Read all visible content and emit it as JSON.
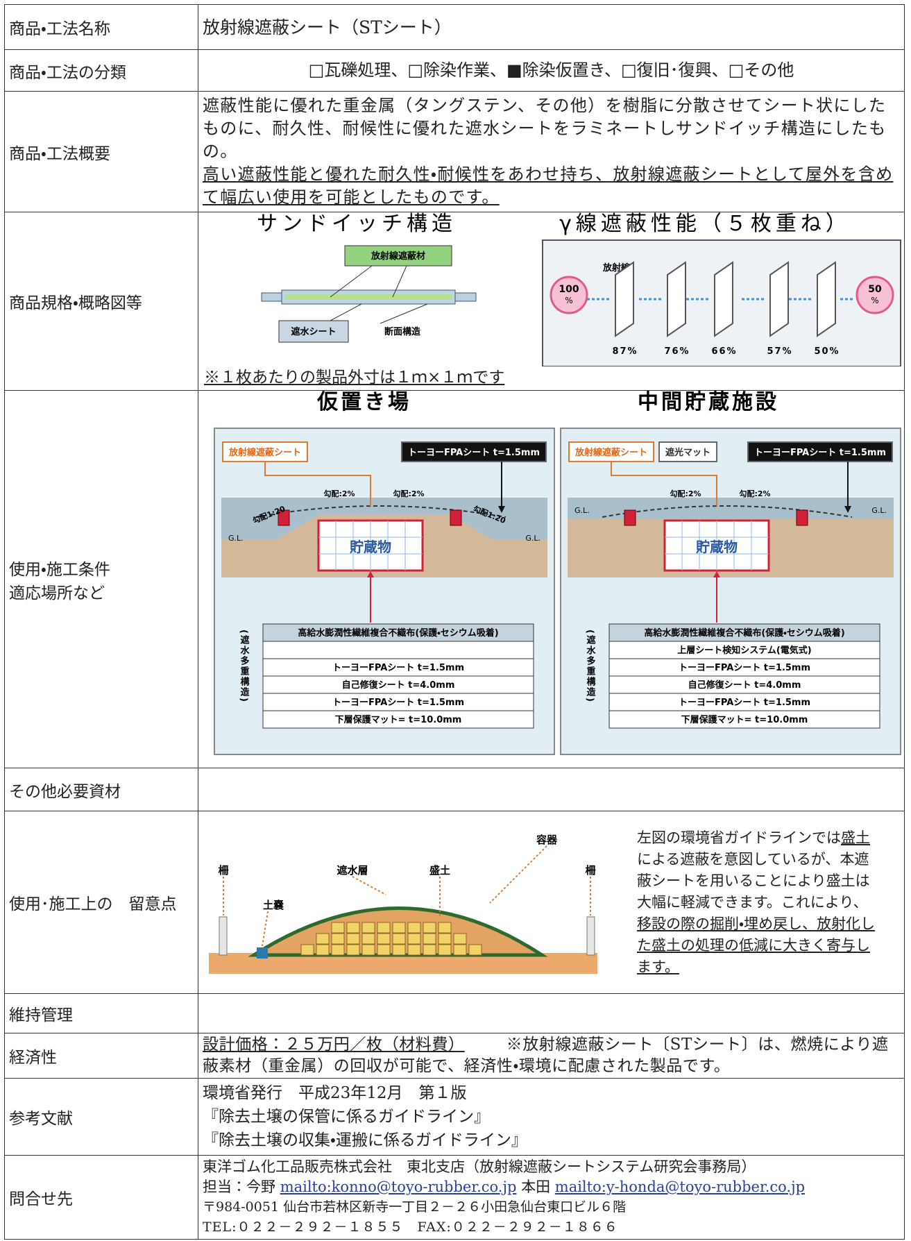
{
  "rows": [
    {
      "label": "商品・工法名称",
      "value": "放射線遮蔽シート（STシート）"
    },
    {
      "label": "商品・工法の分類",
      "value": "□瓦礫処理、□除染作業、■除染仮置き、□復旧･復興、□その他"
    },
    {
      "label": "商品・工法概要",
      "text": "遮蔽性能に優れた重金属（タングステン、その他）を樹脂に分散させてシート状にしたものに、耐久性、耐候性に優れた遮水シートをラミネートしサンドイッチ構造にしたもの。",
      "emphasis": "高い遮蔽性能と優れた耐久性・耐候性をあわせ持ち、放射線遮蔽シートとして屋外を含めて幅広い使用を可能としたものです。"
    },
    {
      "label": "商品規格・概略図等",
      "figure": {
        "sandwich_title": "サンドイッチ構造",
        "shield_label": "放射線遮蔽材",
        "waterproof_label": "遮水シート",
        "section_label": "断面構造",
        "gamma_title": "γ線遮蔽性能（５枚重ね）",
        "radiation_label": "放射線",
        "start": [
          "100",
          "%"
        ],
        "end": [
          "50",
          "%"
        ],
        "percents": [
          "87%",
          "76%",
          "66%",
          "57%",
          "50%"
        ]
      },
      "note": "※１枚あたりの製品外寸は１ｍ×１ｍです"
    },
    {
      "label": [
        "使用・施工条件",
        "適応場所など"
      ],
      "panels": [
        {
          "title": "仮置き場",
          "tags": [
            "放射線遮蔽シート",
            "トーヨーFPAシート t=1.5mm"
          ],
          "slopes": [
            "勾配:2%",
            "勾配:2%"
          ],
          "grades": [
            "勾配1:20",
            "勾配1:20"
          ],
          "gl": [
            "G.L.",
            "G.L."
          ],
          "storage": "貯蔵物",
          "side": "(遮水多重構造)",
          "layers": [
            "高給水膨潤性繊維複合不織布(保護・セシウム吸着)",
            null,
            "トーヨーFPAシート t=1.5mm",
            "自己修復シート t=4.0mm",
            "トーヨーFPAシート t=1.5mm",
            "下層保護マット= t=10.0mm"
          ]
        },
        {
          "title": "中間貯蔵施設",
          "tags": [
            "放射線遮蔽シート",
            "遮光マット",
            "トーヨーFPAシート t=1.5mm"
          ],
          "slopes": [
            "勾配:2%",
            "勾配:2%"
          ],
          "gl": [
            "G.L.",
            "G.L."
          ],
          "storage": "貯蔵物",
          "side": "(遮水多重構造)",
          "layers": [
            "高給水膨潤性繊維複合不織布(保護・セシウム吸着)",
            "上層シート検知システム(電気式)",
            "トーヨーFPAシート t=1.5mm",
            "自己修復シート t=4.0mm",
            "トーヨーFPAシート t=1.5mm",
            "下層保護マット= t=10.0mm"
          ]
        }
      ]
    },
    {
      "label": "その他必要資材"
    },
    {
      "label": "使用･施工上の　留意点",
      "figure": {
        "container": "容器",
        "fence_left": "柵",
        "water_layer": "遮水層",
        "soil": "盛土",
        "fence_right": "柵",
        "sandbag": "土嚢"
      },
      "text": [
        "左図の環境省ガイドラインでは",
        "盛土",
        "による遮蔽を意図しているが、本遮蔽シートを用いることにより盛土は大幅に軽減できます。これにより、",
        "移設の際の掘削・埋め戻し、放射化した盛土の処理の低減に大きく寄与します。"
      ]
    },
    {
      "label": "維持管理"
    },
    {
      "label": "経済性",
      "price": "設計価格：２５万円／枚（材料費）",
      "text": "※放射線遮蔽シート〔STシート〕は、燃焼により遮蔽素材（重金属）の回収が可能で、経済性・環境に配慮された製品です。"
    },
    {
      "label": "参考文献",
      "lines": [
        "環境省発行　平成23年12月　第１版",
        "『除去土壌の保管に係るガイドライン』",
        "『除去土壌の収集・運搬に係るガイドライン』"
      ]
    },
    {
      "label": "問合せ先",
      "company": "東洋ゴム化工品販売株式会社　東北支店（放射線遮蔽シートシステム研究会事務局）",
      "contact1": "担当：今野",
      "email1": "mailto:konno@toyo-rubber.co.jp",
      "contact2": "本田",
      "email2": "mailto:y-honda@toyo-rubber.co.jp",
      "address": "〒984-0051 仙台市若林区新寺一丁目２－２６小田急仙台東口ビル６階",
      "phone": "TEL:０２２－２９２－１８５５　FAX:０２２－２９２－１８６６"
    }
  ]
}
